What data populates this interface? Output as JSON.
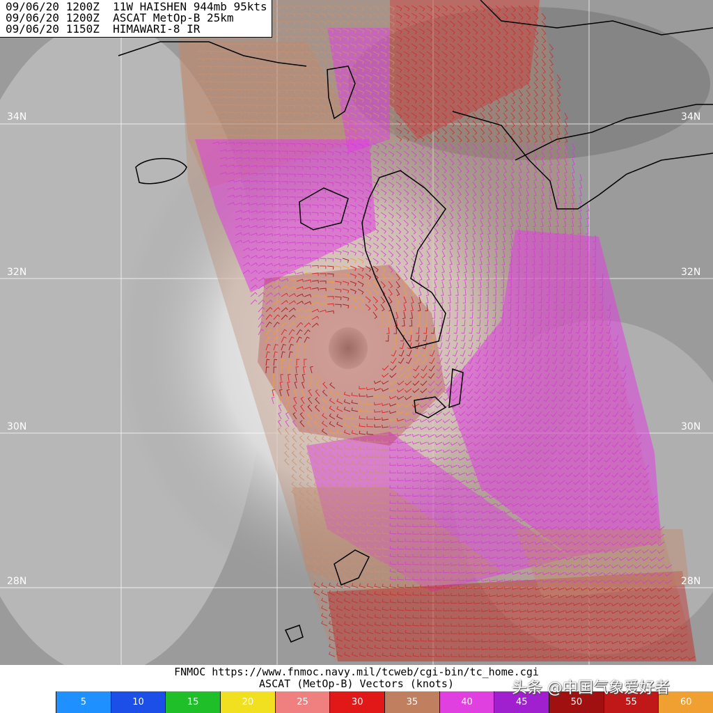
{
  "title_lines": [
    "09/06/20 1200Z  11W HAISHEN 944mb 95kts",
    "09/06/20 1200Z  ASCAT MetOp-B 25km",
    "09/06/20 1150Z  HIMAWARI-8 IR"
  ],
  "latitude_labels": [
    "34N",
    "32N",
    "30N",
    "28N"
  ],
  "footer": {
    "source_line": "FNMOC https://www.fnmoc.navy.mil/tcweb/cgi-bin/tc_home.cgi",
    "legend_line": "ASCAT (MetOp-B) Vectors (knots)"
  },
  "watermark": "头条 @中国气象爱好者",
  "wind_scale": [
    {
      "value": "5",
      "color": "#1e90ff"
    },
    {
      "value": "10",
      "color": "#1c4fe8"
    },
    {
      "value": "15",
      "color": "#1fbf2a"
    },
    {
      "value": "20",
      "color": "#f0e020"
    },
    {
      "value": "25",
      "color": "#f08080"
    },
    {
      "value": "30",
      "color": "#e01818"
    },
    {
      "value": "35",
      "color": "#c08060"
    },
    {
      "value": "40",
      "color": "#e040e0"
    },
    {
      "value": "45",
      "color": "#a020d0"
    },
    {
      "value": "50",
      "color": "#a01010"
    },
    {
      "value": "55",
      "color": "#c01818"
    },
    {
      "value": "60",
      "color": "#f0a030"
    }
  ]
}
